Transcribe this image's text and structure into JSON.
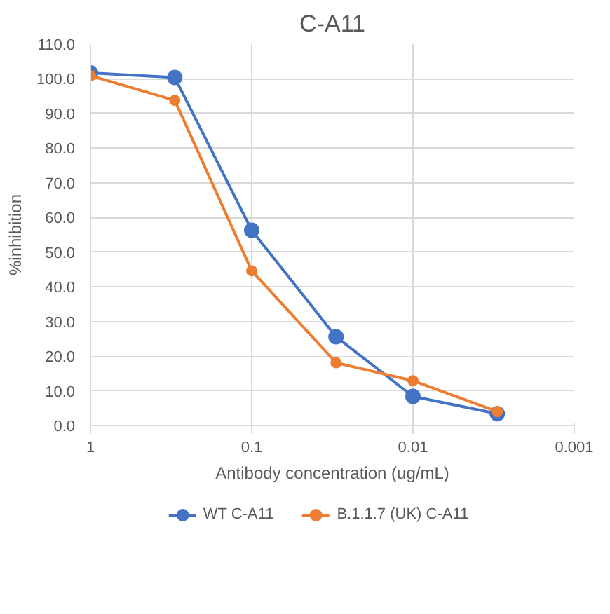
{
  "chart_data": {
    "type": "line",
    "title": "C-A11",
    "xlabel": "Antibody concentration (ug/mL)",
    "ylabel": "%inhibition",
    "x": [
      1,
      0.3,
      0.1,
      0.03,
      0.01,
      0.003
    ],
    "series": [
      {
        "name": "WT C-A11",
        "color": "#4472c4",
        "values": [
          101.7,
          100.4,
          56.3,
          25.6,
          8.4,
          3.4
        ]
      },
      {
        "name": "B.1.1.7 (UK) C-A11",
        "color": "#ed7d31",
        "values": [
          100.9,
          93.8,
          44.6,
          18.1,
          12.9,
          4.0
        ]
      }
    ],
    "log": "x",
    "xlim": [
      1,
      0.001
    ],
    "xticks": [
      1,
      0.1,
      0.01,
      0.001
    ],
    "ylim": [
      0,
      110
    ],
    "yticks": [
      {
        "value": 0,
        "label": "0.0"
      },
      {
        "value": 10,
        "label": "10.0"
      },
      {
        "value": 20,
        "label": "20.0"
      },
      {
        "value": 30,
        "label": "30.0"
      },
      {
        "value": 40,
        "label": "40.0"
      },
      {
        "value": 50,
        "label": "50.0"
      },
      {
        "value": 60,
        "label": "60.0"
      },
      {
        "value": 70,
        "label": "70.0"
      },
      {
        "value": 80,
        "label": "80.0"
      },
      {
        "value": 90,
        "label": "90.0"
      },
      {
        "value": 100,
        "label": "100.0"
      },
      {
        "value": 110,
        "label": "110.0"
      }
    ],
    "grid": true,
    "legend": "bottom",
    "marker": "circle",
    "line_style": "solid"
  }
}
